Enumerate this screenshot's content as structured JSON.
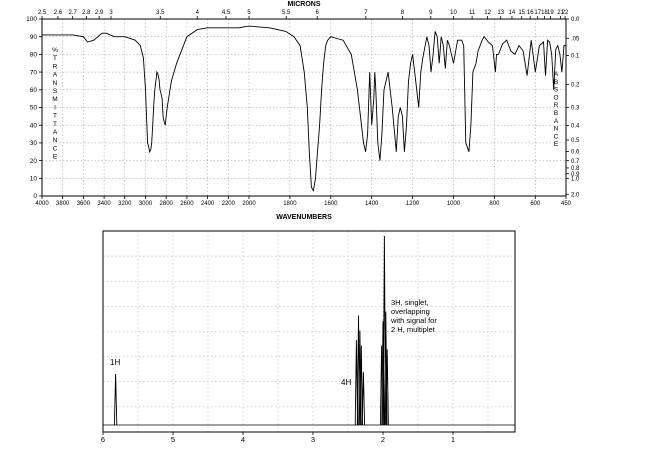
{
  "chart_data": [
    {
      "type": "line",
      "title": "",
      "top_axis_label": "MICRONS",
      "xlabel": "WAVENUMBERS",
      "left_axis_label": "% TRANSMITTANCE",
      "right_axis_label": "ABSORBANCE",
      "xlim": [
        4000,
        450
      ],
      "ylim": [
        0,
        100
      ],
      "wavenumber_tick_labels": [
        "4000",
        "3800",
        "3600",
        "3400",
        "3200",
        "3000",
        "2800",
        "2600",
        "2400",
        "2200",
        "2000",
        "1800",
        "1600",
        "1400",
        "1200",
        "1000",
        "800",
        "600",
        "450"
      ],
      "transmittance_tick_labels": [
        "0",
        "10",
        "20",
        "30",
        "40",
        "50",
        "60",
        "70",
        "80",
        "90",
        "100"
      ],
      "micron_tick_labels": [
        "2.5",
        "2.6",
        "2.7",
        "2.8",
        "2.9",
        "3",
        "3.5",
        "4",
        "4.5",
        "5",
        "5.5",
        "6",
        "7",
        "8",
        "9",
        "10",
        "11",
        "12",
        "13",
        "14",
        "15",
        "16",
        "17",
        "18",
        "19",
        "21",
        "22"
      ],
      "absorbance_tick_labels": [
        "0.0",
        ".05",
        "0.1",
        "0.2",
        "0.3",
        "0.4",
        "0.5",
        "0.6",
        "0.7",
        "0.8",
        "0.9",
        "1.0",
        "2.0"
      ],
      "series": [
        {
          "x": [
            4000,
            3800,
            3700,
            3600,
            3560,
            3500,
            3420,
            3380,
            3300,
            3200,
            3100,
            3050,
            3020,
            3000,
            2990,
            2980,
            2970,
            2960,
            2950,
            2940,
            2930,
            2920,
            2910,
            2900,
            2890,
            2880,
            2870,
            2860,
            2850,
            2840,
            2830,
            2820,
            2810,
            2790,
            2750,
            2700,
            2600,
            2500,
            2400,
            2300,
            2200,
            2100,
            2000,
            1900,
            1820,
            1780,
            1750,
            1730,
            1715,
            1705,
            1695,
            1685,
            1675,
            1665,
            1655,
            1645,
            1635,
            1625,
            1615,
            1600,
            1570,
            1540,
            1500,
            1470,
            1450,
            1440,
            1430,
            1420,
            1410,
            1400,
            1390,
            1385,
            1380,
            1370,
            1360,
            1350,
            1340,
            1320,
            1300,
            1280,
            1270,
            1260,
            1250,
            1240,
            1230,
            1220,
            1210,
            1200,
            1190,
            1180,
            1170,
            1160,
            1150,
            1130,
            1120,
            1110,
            1100,
            1090,
            1080,
            1070,
            1060,
            1050,
            1040,
            1030,
            1020,
            1000,
            980,
            960,
            950,
            940,
            925,
            915,
            905,
            890,
            880,
            870,
            860,
            850,
            830,
            810,
            795,
            790,
            780,
            760,
            740,
            720,
            700,
            680,
            660,
            640,
            620,
            600,
            580,
            560,
            550,
            540,
            530,
            520,
            510,
            500,
            490,
            480,
            470,
            460,
            450
          ],
          "y": [
            91,
            91,
            91,
            90,
            87,
            88,
            92,
            92,
            90,
            90,
            88,
            85,
            78,
            60,
            45,
            30,
            28,
            25,
            26,
            30,
            40,
            52,
            60,
            65,
            70,
            69,
            66,
            60,
            58,
            55,
            45,
            42,
            40,
            50,
            65,
            75,
            90,
            94,
            95,
            95,
            95,
            95,
            96,
            95,
            93,
            90,
            85,
            70,
            50,
            25,
            5,
            3,
            10,
            25,
            40,
            60,
            75,
            85,
            88,
            90,
            89,
            88,
            80,
            60,
            40,
            30,
            25,
            35,
            70,
            40,
            55,
            70,
            60,
            30,
            20,
            35,
            60,
            70,
            50,
            25,
            45,
            50,
            45,
            25,
            40,
            65,
            75,
            80,
            70,
            60,
            50,
            70,
            78,
            90,
            85,
            70,
            80,
            93,
            90,
            75,
            90,
            85,
            72,
            88,
            85,
            75,
            88,
            88,
            85,
            30,
            25,
            40,
            70,
            75,
            82,
            85,
            88,
            90,
            87,
            85,
            70,
            80,
            80,
            86,
            88,
            82,
            80,
            85,
            82,
            68,
            88,
            70,
            85,
            87,
            68,
            88,
            87,
            80,
            60,
            83,
            85,
            80,
            70,
            85,
            85
          ]
        }
      ]
    },
    {
      "type": "line",
      "title": "",
      "xlabel": "",
      "ylabel": "",
      "xlim": [
        6,
        0
      ],
      "ylim": [
        0,
        100
      ],
      "ppm_tick_labels": [
        "6",
        "5",
        "4",
        "3",
        "2",
        "1"
      ],
      "annotations": [
        {
          "text": "1H",
          "x": 5.81
        },
        {
          "text": "4H",
          "x": 2.33
        },
        {
          "text": "3H, singlet,\noverlapping\nwith signal for\n2 H, multiplet",
          "x": 1.97
        }
      ],
      "series": [
        {
          "peaks": [
            {
              "ppm": 5.82,
              "height": 27
            },
            {
              "ppm": 2.38,
              "height": 45
            },
            {
              "ppm": 2.35,
              "height": 58
            },
            {
              "ppm": 2.33,
              "height": 50
            },
            {
              "ppm": 2.31,
              "height": 42
            },
            {
              "ppm": 2.28,
              "height": 28
            },
            {
              "ppm": 2.02,
              "height": 42
            },
            {
              "ppm": 2.0,
              "height": 55
            },
            {
              "ppm": 1.98,
              "height": 100
            },
            {
              "ppm": 1.96,
              "height": 60
            },
            {
              "ppm": 1.94,
              "height": 40
            }
          ]
        }
      ]
    }
  ]
}
